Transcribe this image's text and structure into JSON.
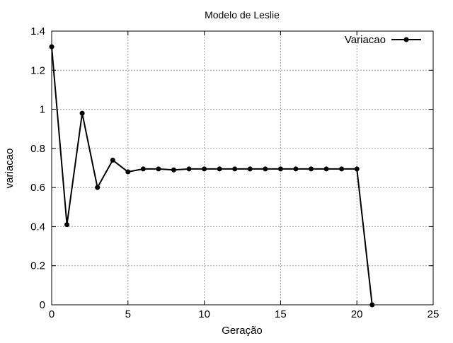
{
  "chart_data": {
    "type": "line",
    "title": "Modelo de Leslie",
    "xlabel": "Geração",
    "ylabel": "variacao",
    "xlim": [
      0,
      25
    ],
    "ylim": [
      0,
      1.4
    ],
    "x_ticks": [
      0,
      5,
      10,
      15,
      20,
      25
    ],
    "y_ticks": [
      0,
      0.2,
      0.4,
      0.6,
      0.8,
      1,
      1.2,
      1.4
    ],
    "x_tick_labels": [
      "0",
      "5",
      "10",
      "15",
      "20",
      "25"
    ],
    "y_tick_labels": [
      "0",
      "0.2",
      "0.4",
      "0.6",
      "0.8",
      "1",
      "1.2",
      "1.4"
    ],
    "grid": true,
    "legend_position": "top-right",
    "series": [
      {
        "name": "Variacao",
        "color": "#000000",
        "marker": "filled-circle",
        "x": [
          0,
          1,
          2,
          3,
          4,
          5,
          6,
          7,
          8,
          9,
          10,
          11,
          12,
          13,
          14,
          15,
          16,
          17,
          18,
          19,
          20,
          21
        ],
        "y": [
          1.32,
          0.41,
          0.98,
          0.6,
          0.74,
          0.68,
          0.695,
          0.695,
          0.69,
          0.695,
          0.695,
          0.695,
          0.695,
          0.695,
          0.695,
          0.695,
          0.695,
          0.695,
          0.695,
          0.695,
          0.695,
          0.0
        ]
      }
    ]
  }
}
